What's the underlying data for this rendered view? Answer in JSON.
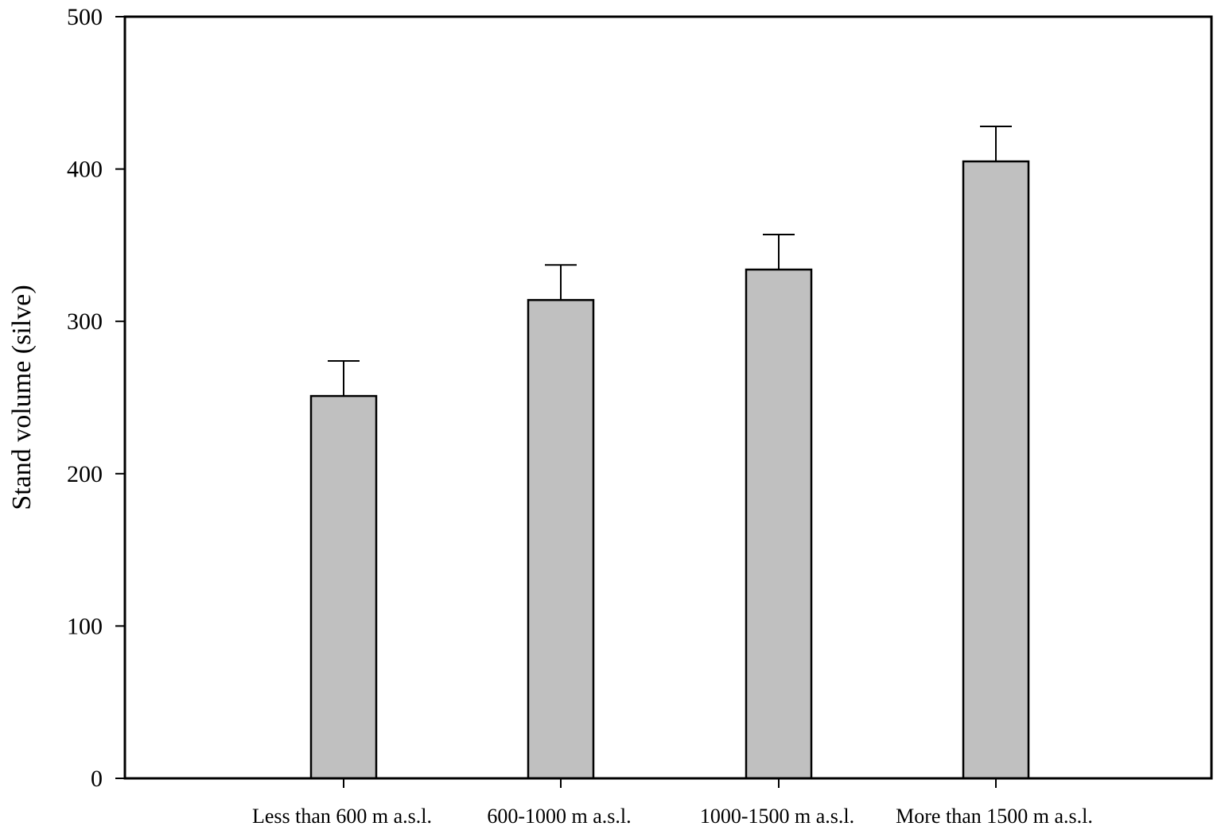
{
  "chart_data": {
    "type": "bar",
    "title": "",
    "xlabel": "",
    "ylabel": "Stand volume (silve)",
    "categories": [
      "Less than 600 m a.s.l.",
      "600-1000 m a.s.l.",
      "1000-1500 m a.s.l.",
      "More than 1500 m a.s.l."
    ],
    "values": [
      251,
      314,
      334,
      405
    ],
    "error_upper": [
      23,
      23,
      23,
      23
    ],
    "ylim": [
      0,
      500
    ],
    "yticks": [
      0,
      100,
      200,
      300,
      400,
      500
    ],
    "grid": false,
    "legend": "none",
    "bar_color": "#c0c0c0",
    "edge_color": "#000000"
  }
}
